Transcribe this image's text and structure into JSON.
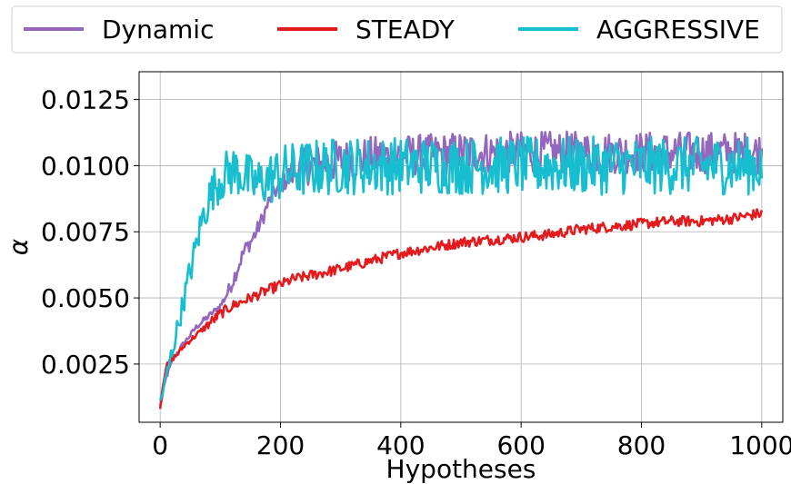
{
  "chart_data": {
    "type": "line",
    "xlabel": "Hypotheses",
    "ylabel": "α",
    "xlim": [
      -35,
      1035
    ],
    "ylim": [
      0.0003,
      0.01355
    ],
    "xticks": [
      0,
      200,
      400,
      600,
      800,
      1000
    ],
    "xtick_labels": [
      "0",
      "200",
      "400",
      "600",
      "800",
      "1000"
    ],
    "yticks": [
      0.0025,
      0.005,
      0.0075,
      0.01,
      0.0125
    ],
    "ytick_labels": [
      "0.0025",
      "0.0050",
      "0.0075",
      "0.0100",
      "0.0125"
    ],
    "grid": true,
    "legend_placement": "top",
    "series": [
      {
        "name": "Dynamic",
        "color": "#9467bd",
        "x": [
          0,
          10,
          20,
          30,
          40,
          50,
          60,
          70,
          80,
          90,
          100,
          110,
          120,
          130,
          140,
          150,
          160,
          170,
          180,
          190,
          200,
          210,
          220,
          240,
          260,
          280,
          300,
          350,
          400,
          450,
          500,
          550,
          600,
          650,
          700,
          750,
          800,
          850,
          900,
          950,
          1000
        ],
        "values": [
          0.0009,
          0.002,
          0.0026,
          0.003,
          0.0033,
          0.0036,
          0.0039,
          0.0041,
          0.0043,
          0.0045,
          0.0047,
          0.0051,
          0.0056,
          0.0062,
          0.0068,
          0.0071,
          0.0075,
          0.008,
          0.0086,
          0.009,
          0.0092,
          0.0095,
          0.0097,
          0.01,
          0.01,
          0.0101,
          0.0102,
          0.0103,
          0.0104,
          0.0104,
          0.0105,
          0.0105,
          0.0105,
          0.0105,
          0.0105,
          0.0105,
          0.0105,
          0.0105,
          0.0105,
          0.0105,
          0.0105
        ],
        "noise": [
          0.0001,
          0.0001,
          0.0001,
          0.0001,
          0.0001,
          0.0001,
          0.0001,
          0.00012,
          0.00012,
          0.00012,
          0.00015,
          0.0002,
          0.0003,
          0.0003,
          0.0003,
          0.0003,
          0.0003,
          0.0003,
          0.0003,
          0.0003,
          0.0003,
          0.0004,
          0.0006,
          0.0007,
          0.0008,
          0.0008,
          0.0008,
          0.0008,
          0.0008,
          0.0008,
          0.0008,
          0.0008,
          0.0008,
          0.0008,
          0.0008,
          0.0008,
          0.0008,
          0.0008,
          0.0008,
          0.0008,
          0.0008
        ]
      },
      {
        "name": "STEADY",
        "color": "#e41a1c",
        "x": [
          0,
          5,
          10,
          20,
          30,
          40,
          50,
          60,
          70,
          80,
          90,
          100,
          120,
          140,
          160,
          180,
          200,
          220,
          240,
          260,
          280,
          300,
          350,
          400,
          450,
          500,
          550,
          600,
          650,
          700,
          750,
          800,
          850,
          900,
          950,
          1000
        ],
        "values": [
          0.0009,
          0.0018,
          0.0024,
          0.0027,
          0.0029,
          0.0032,
          0.0034,
          0.0036,
          0.0038,
          0.004,
          0.0042,
          0.0044,
          0.0047,
          0.0049,
          0.0051,
          0.0053,
          0.0055,
          0.0057,
          0.0058,
          0.0059,
          0.006,
          0.0061,
          0.0064,
          0.0067,
          0.0069,
          0.0071,
          0.0072,
          0.0073,
          0.0074,
          0.0076,
          0.0077,
          0.0078,
          0.0079,
          0.0079,
          0.008,
          0.0082
        ],
        "noise": [
          0.0001,
          0.0001,
          0.0001,
          0.0001,
          0.0001,
          0.0001,
          0.0001,
          0.0001,
          0.0001,
          0.0002,
          0.0002,
          0.0002,
          0.0002,
          0.0002,
          0.0002,
          0.0002,
          0.0002,
          0.0002,
          0.0002,
          0.0002,
          0.0002,
          0.0002,
          0.0002,
          0.0002,
          0.0002,
          0.0002,
          0.0002,
          0.0002,
          0.0002,
          0.0002,
          0.0002,
          0.0002,
          0.0002,
          0.0002,
          0.0002,
          0.0002
        ]
      },
      {
        "name": "AGGRESSIVE",
        "color": "#17becf",
        "x": [
          0,
          5,
          10,
          20,
          30,
          40,
          50,
          60,
          70,
          80,
          90,
          100,
          110,
          120,
          130,
          140,
          150,
          160,
          170,
          180,
          200,
          220,
          250,
          300,
          350,
          400,
          450,
          500,
          550,
          600,
          650,
          700,
          750,
          800,
          850,
          900,
          950,
          1000
        ],
        "values": [
          0.0011,
          0.0015,
          0.002,
          0.003,
          0.004,
          0.005,
          0.006,
          0.007,
          0.008,
          0.0087,
          0.0092,
          0.0095,
          0.0097,
          0.0098,
          0.0098,
          0.0096,
          0.0094,
          0.0093,
          0.0094,
          0.0095,
          0.0097,
          0.0098,
          0.0099,
          0.01,
          0.01,
          0.01,
          0.01,
          0.01,
          0.01,
          0.01,
          0.01,
          0.01,
          0.01,
          0.01,
          0.01,
          0.01,
          0.01,
          0.01
        ],
        "noise": [
          0.0002,
          0.0002,
          0.0003,
          0.0004,
          0.0004,
          0.0005,
          0.0006,
          0.0006,
          0.0007,
          0.0008,
          0.0008,
          0.0009,
          0.0009,
          0.001,
          0.001,
          0.001,
          0.001,
          0.001,
          0.001,
          0.001,
          0.0011,
          0.0011,
          0.0011,
          0.0011,
          0.0011,
          0.0011,
          0.0011,
          0.0011,
          0.0011,
          0.0011,
          0.0011,
          0.0011,
          0.0011,
          0.0011,
          0.0011,
          0.0011,
          0.0011,
          0.0011
        ]
      }
    ]
  }
}
